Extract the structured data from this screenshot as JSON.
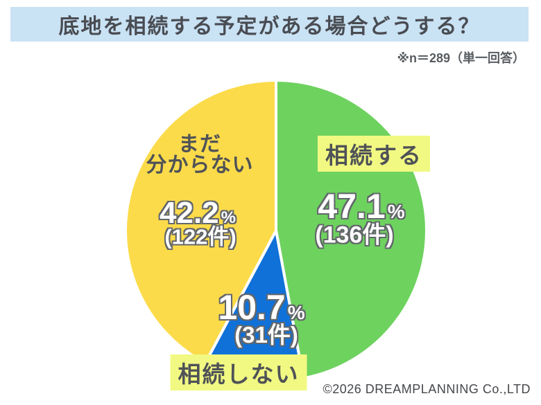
{
  "title": "底地を相続する予定がある場合どうする？",
  "note": "※n＝289（単一回答）",
  "copyright": "©2026 DREAMPLANNING Co.,LTD",
  "colors": {
    "title_bar_bg": "#c9e2f4",
    "highlight_bg": "#f1f982",
    "text_gray": "#4f5257",
    "percent_outline": "#63676b",
    "background": "#ffffff",
    "green": "#6ed25f",
    "blue": "#1071d8",
    "yellow": "#fcdb4a"
  },
  "chart_data": {
    "type": "pie",
    "title": "底地を相続する予定がある場合どうする？",
    "sample_note": "※n＝289（単一回答）",
    "n": 289,
    "start_angle_deg": 0,
    "direction": "clockwise",
    "separator_color": "#ffffff",
    "percent_sign": "%",
    "slices": [
      {
        "label": "相続する",
        "value_percent": 47.1,
        "count": 136,
        "percent_label": "47.1",
        "count_label": "(136件)",
        "color": "#6ed25f"
      },
      {
        "label": "相続しない",
        "value_percent": 10.7,
        "count": 31,
        "percent_label": "10.7",
        "count_label": "(31件)",
        "color": "#1071d8"
      },
      {
        "label": "まだ分からない",
        "label_lines": [
          "まだ",
          "分からない"
        ],
        "value_percent": 42.2,
        "count": 122,
        "percent_label": "42.2",
        "count_label": "(122件)",
        "color": "#fcdb4a"
      }
    ]
  }
}
